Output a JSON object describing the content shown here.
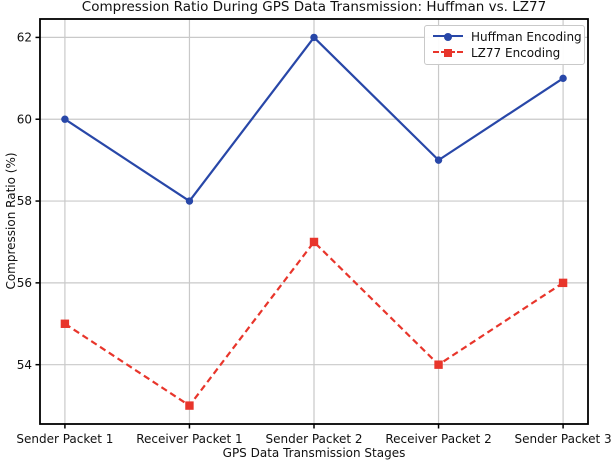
{
  "chart_data": {
    "type": "line",
    "title": "Compression Ratio During GPS Data Transmission: Huffman vs. LZ77",
    "xlabel": "GPS Data Transmission Stages",
    "ylabel": "Compression Ratio (%)",
    "categories": [
      "Sender Packet 1",
      "Receiver Packet 1",
      "Sender Packet 2",
      "Receiver Packet 2",
      "Sender Packet 3"
    ],
    "series": [
      {
        "name": "Huffman Encoding",
        "values": [
          60,
          58,
          62,
          59,
          61
        ],
        "color": "#2847a8",
        "line_style": "solid",
        "marker": "circle"
      },
      {
        "name": "LZ77 Encoding",
        "values": [
          55,
          53,
          57,
          54,
          56
        ],
        "color": "#e8352b",
        "line_style": "dashed",
        "marker": "square"
      }
    ],
    "yticks": [
      54,
      56,
      58,
      60,
      62
    ],
    "ylim": [
      52.55,
      62.45
    ],
    "xlim": [
      -0.2,
      4.2
    ],
    "grid": true,
    "legend_position": "upper right"
  },
  "colors": {
    "grid": "#c9c9c9",
    "spine": "#000000",
    "tick": "#000000",
    "text": "#111111",
    "background": "#ffffff"
  }
}
